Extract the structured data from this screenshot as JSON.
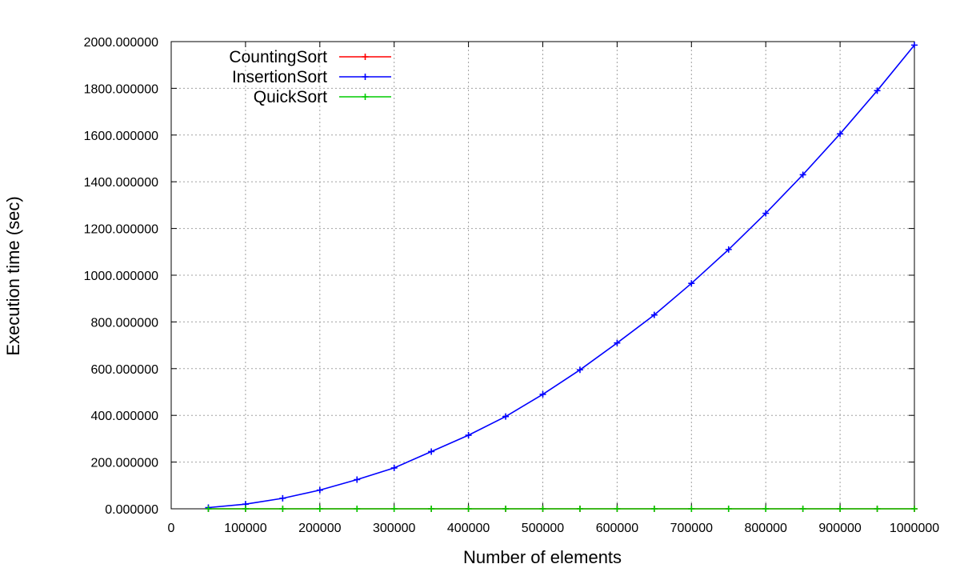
{
  "chart_data": {
    "type": "line",
    "xlabel": "Number of elements",
    "ylabel": "Execution time (sec)",
    "xlim": [
      0,
      1000000
    ],
    "ylim": [
      0,
      2000
    ],
    "x_ticks": [
      "0",
      "100000",
      "200000",
      "300000",
      "400000",
      "500000",
      "600000",
      "700000",
      "800000",
      "900000",
      "1000000"
    ],
    "y_ticks": [
      "0.000000",
      "200.000000",
      "400.000000",
      "600.000000",
      "800.000000",
      "1000.000000",
      "1200.000000",
      "1400.000000",
      "1600.000000",
      "1800.000000",
      "2000.000000"
    ],
    "grid": true,
    "legend_position": "top-left",
    "x": [
      50000,
      100000,
      150000,
      200000,
      250000,
      300000,
      350000,
      400000,
      450000,
      500000,
      550000,
      600000,
      650000,
      700000,
      750000,
      800000,
      850000,
      900000,
      950000,
      1000000
    ],
    "series": [
      {
        "name": "CountingSort",
        "color": "#ff0000",
        "values": [
          0,
          0,
          0,
          0,
          0,
          0,
          0,
          0,
          0,
          0,
          0,
          0,
          0,
          0,
          0,
          0,
          0,
          0,
          0,
          0
        ]
      },
      {
        "name": "InsertionSort",
        "color": "#0000ff",
        "values": [
          5,
          20,
          45,
          80,
          125,
          175,
          245,
          315,
          395,
          490,
          595,
          710,
          830,
          965,
          1110,
          1265,
          1430,
          1605,
          1790,
          1985
        ]
      },
      {
        "name": "QuickSort",
        "color": "#00cc00",
        "values": [
          0,
          0,
          0,
          0,
          0,
          0,
          0,
          0,
          0,
          0,
          0,
          0,
          0,
          0,
          0,
          0,
          0,
          0,
          0,
          0
        ]
      }
    ]
  }
}
